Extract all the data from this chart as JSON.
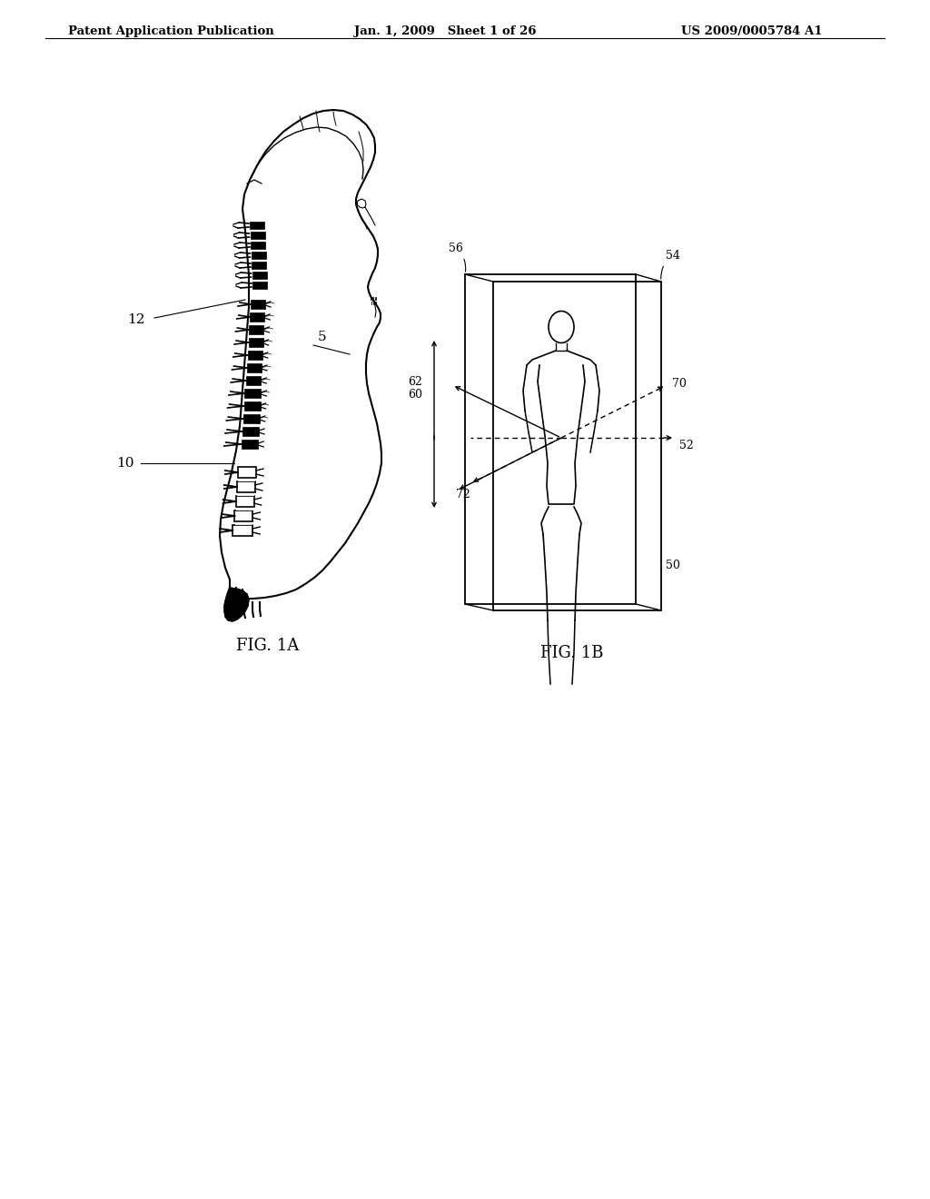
{
  "background_color": "#ffffff",
  "header_left": "Patent Application Publication",
  "header_center": "Jan. 1, 2009   Sheet 1 of 26",
  "header_right": "US 2009/0005784 A1",
  "fig1a_caption": "FIG. 1A",
  "fig1b_caption": "FIG. 1B",
  "label_5": "5",
  "label_10": "10",
  "label_12": "12",
  "label_50": "50",
  "label_52": "52",
  "label_54": "54",
  "label_56": "56",
  "label_60": "60",
  "label_62": "62",
  "label_70": "70",
  "label_72": "72"
}
